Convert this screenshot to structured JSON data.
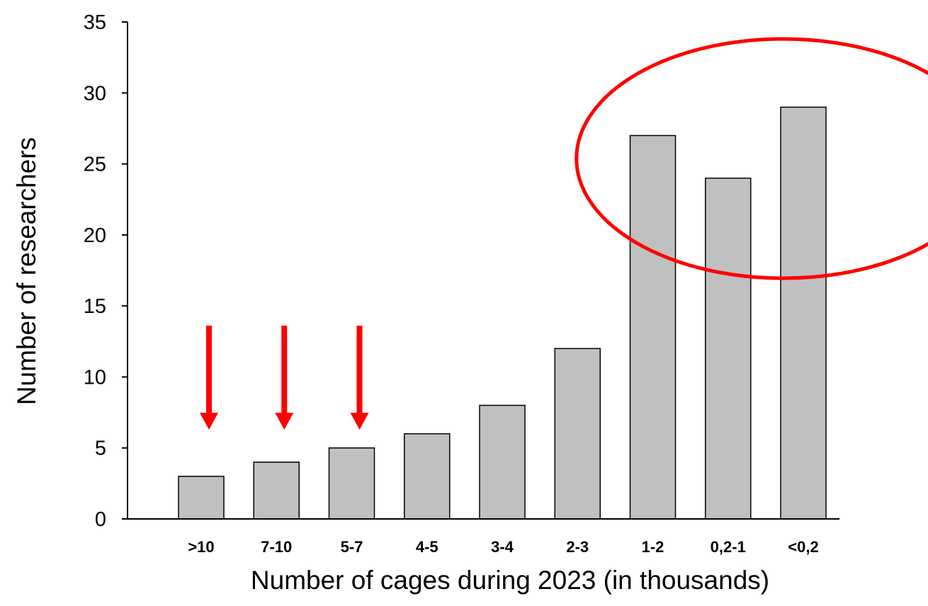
{
  "chart_data": {
    "type": "bar",
    "title": "",
    "xlabel": "Number of cages during 2023 (in thousands)",
    "ylabel": "Number of researchers",
    "categories": [
      ">10",
      "7-10",
      "5-7",
      "4-5",
      "3-4",
      "2-3",
      "1-2",
      "0,2-1",
      "<0,2"
    ],
    "values": [
      3,
      4,
      5,
      6,
      8,
      12,
      27,
      24,
      29
    ],
    "ylim": [
      0,
      35
    ],
    "yticks": [
      0,
      5,
      10,
      15,
      20,
      25,
      30,
      35
    ],
    "grid": false,
    "legend": "none",
    "colors": {
      "bar_fill": "#c0c0c0",
      "bar_stroke": "#000000",
      "annotation": "#ff0000"
    },
    "annotations": [
      {
        "type": "arrow-down",
        "target_category": ">10"
      },
      {
        "type": "arrow-down",
        "target_category": "7-10"
      },
      {
        "type": "arrow-down",
        "target_category": "5-7"
      },
      {
        "type": "ellipse",
        "target_categories": [
          "1-2",
          "0,2-1",
          "<0,2"
        ]
      }
    ]
  }
}
